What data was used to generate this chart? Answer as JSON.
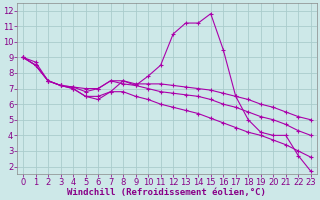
{
  "background_color": "#cde8e8",
  "line_color": "#aa00aa",
  "grid_color": "#aacccc",
  "xlabel": "Windchill (Refroidissement éolien,°C)",
  "xlabel_fontsize": 6.5,
  "tick_fontsize": 6,
  "xlim": [
    -0.5,
    23.5
  ],
  "ylim": [
    1.5,
    12.5
  ],
  "xticks": [
    0,
    1,
    2,
    3,
    4,
    5,
    6,
    7,
    8,
    9,
    10,
    11,
    12,
    13,
    14,
    15,
    16,
    17,
    18,
    19,
    20,
    21,
    22,
    23
  ],
  "yticks": [
    2,
    3,
    4,
    5,
    6,
    7,
    8,
    9,
    10,
    11,
    12
  ],
  "lines": [
    {
      "x": [
        0,
        1,
        2,
        3,
        4,
        5,
        6,
        7,
        8,
        9,
        10,
        11,
        12,
        13,
        14,
        15,
        16,
        17,
        18,
        19,
        20,
        21,
        22,
        23
      ],
      "y": [
        9.0,
        8.7,
        7.5,
        7.2,
        7.0,
        6.5,
        6.3,
        6.8,
        7.5,
        7.2,
        7.8,
        8.5,
        10.5,
        11.2,
        11.2,
        11.8,
        9.5,
        6.5,
        5.0,
        4.2,
        4.0,
        4.0,
        2.7,
        1.7
      ]
    },
    {
      "x": [
        0,
        1,
        2,
        3,
        4,
        5,
        6,
        7,
        8,
        9,
        10,
        11,
        12,
        13,
        14,
        15,
        16,
        17,
        18,
        19,
        20,
        21,
        22,
        23
      ],
      "y": [
        9.0,
        8.5,
        7.5,
        7.2,
        7.1,
        7.0,
        7.0,
        7.5,
        7.5,
        7.3,
        7.3,
        7.3,
        7.2,
        7.1,
        7.0,
        6.9,
        6.7,
        6.5,
        6.3,
        6.0,
        5.8,
        5.5,
        5.2,
        5.0
      ]
    },
    {
      "x": [
        0,
        1,
        2,
        3,
        4,
        5,
        6,
        7,
        8,
        9,
        10,
        11,
        12,
        13,
        14,
        15,
        16,
        17,
        18,
        19,
        20,
        21,
        22,
        23
      ],
      "y": [
        9.0,
        8.5,
        7.5,
        7.2,
        7.1,
        6.8,
        7.0,
        7.5,
        7.3,
        7.2,
        7.0,
        6.8,
        6.7,
        6.6,
        6.5,
        6.3,
        6.0,
        5.8,
        5.5,
        5.2,
        5.0,
        4.7,
        4.3,
        4.0
      ]
    },
    {
      "x": [
        0,
        1,
        2,
        3,
        4,
        5,
        6,
        7,
        8,
        9,
        10,
        11,
        12,
        13,
        14,
        15,
        16,
        17,
        18,
        19,
        20,
        21,
        22,
        23
      ],
      "y": [
        9.0,
        8.5,
        7.5,
        7.2,
        7.0,
        6.5,
        6.5,
        6.8,
        6.8,
        6.5,
        6.3,
        6.0,
        5.8,
        5.6,
        5.4,
        5.1,
        4.8,
        4.5,
        4.2,
        4.0,
        3.7,
        3.4,
        3.0,
        2.6
      ]
    }
  ]
}
